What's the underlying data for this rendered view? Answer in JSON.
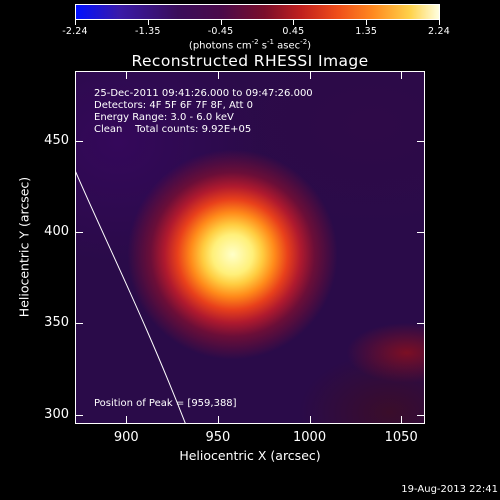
{
  "colorbar": {
    "ticks": [
      "-2.24",
      "-1.35",
      "-0.45",
      "0.45",
      "1.35",
      "2.24"
    ],
    "units_prefix": "(photons cm",
    "units_exp1": "-2",
    "units_mid": " s",
    "units_exp2": "-1",
    "units_mid2": " asec",
    "units_exp3": "-2",
    "units_suffix": ")"
  },
  "title": "Reconstructed RHESSI Image",
  "info": {
    "line1": "25-Dec-2011 09:41:26.000 to 09:47:26.000",
    "line2": "Detectors: 4F 5F 6F 7F 8F, Att 0",
    "line3": "Energy Range: 3.0 - 6.0 keV",
    "line4": "Clean    Total counts: 9.92E+05"
  },
  "peak_text": "Position of Peak = [959,388]",
  "axes": {
    "x_title": "Heliocentric X (arcsec)",
    "y_title": "Heliocentric Y (arcsec)",
    "x_ticks": [
      "900",
      "950",
      "1000",
      "1050"
    ],
    "y_ticks": [
      "450",
      "400",
      "350",
      "300"
    ]
  },
  "footer_date": "19-Aug-2013 22:41"
}
